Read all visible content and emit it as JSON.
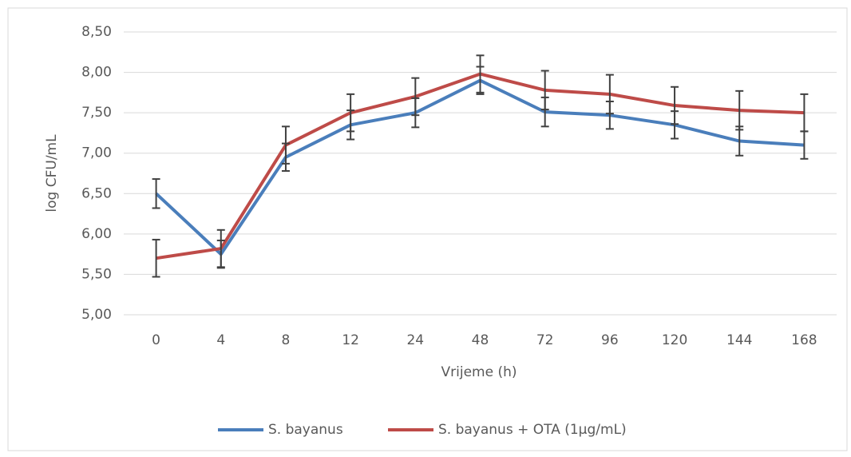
{
  "chart_data": {
    "type": "line",
    "x_label": "Vrijeme (h)",
    "y_label": "log CFU/mL",
    "categories": [
      "0",
      "4",
      "8",
      "12",
      "24",
      "48",
      "72",
      "96",
      "120",
      "144",
      "168"
    ],
    "series": [
      {
        "name": "S. bayanus",
        "color": "#4a7ebb",
        "values": [
          6.5,
          5.75,
          6.95,
          7.35,
          7.5,
          7.9,
          7.51,
          7.47,
          7.35,
          7.15,
          7.1
        ],
        "errors": [
          0.18,
          0.17,
          0.17,
          0.18,
          0.18,
          0.17,
          0.18,
          0.17,
          0.17,
          0.18,
          0.17
        ]
      },
      {
        "name": "S. bayanus + OTA (1µg/mL)",
        "color": "#be4b48",
        "values": [
          5.7,
          5.82,
          7.1,
          7.5,
          7.7,
          7.98,
          7.78,
          7.73,
          7.59,
          7.53,
          7.5
        ],
        "errors": [
          0.23,
          0.23,
          0.23,
          0.23,
          0.23,
          0.23,
          0.24,
          0.24,
          0.23,
          0.24,
          0.23
        ]
      }
    ],
    "ylim": [
      5.0,
      8.5
    ],
    "yticks": [
      {
        "value": 5.0,
        "label": "5,00"
      },
      {
        "value": 5.5,
        "label": "5,50"
      },
      {
        "value": 6.0,
        "label": "6,00"
      },
      {
        "value": 6.5,
        "label": "6,50"
      },
      {
        "value": 7.0,
        "label": "7,00"
      },
      {
        "value": 7.5,
        "label": "7,50"
      },
      {
        "value": 8.0,
        "label": "8,00"
      },
      {
        "value": 8.5,
        "label": "8,50"
      }
    ],
    "grid": true,
    "legend": "bottom",
    "error_bar_color": "#404040"
  }
}
